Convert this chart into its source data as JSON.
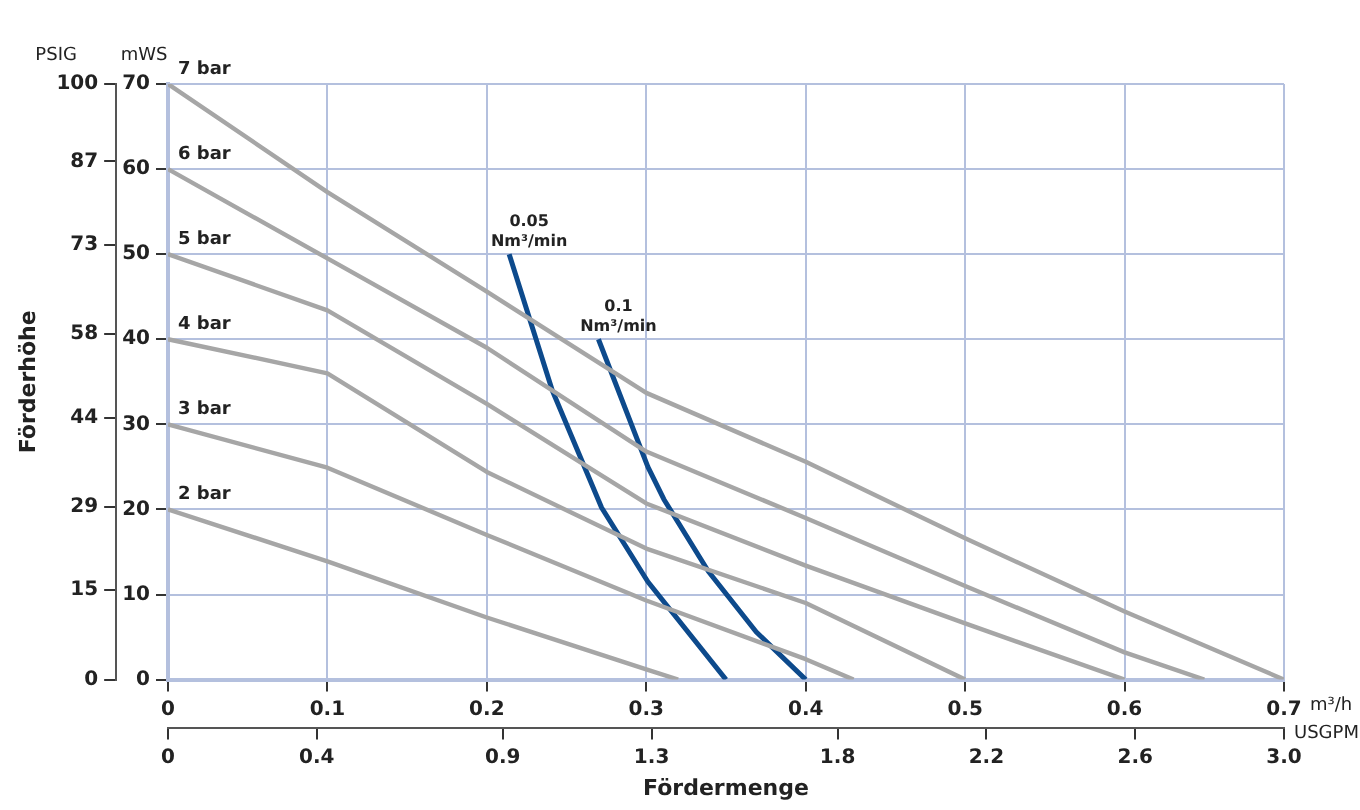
{
  "chart_data": {
    "type": "line",
    "xlabel": "Fördermenge",
    "y2label": "Förderhöhe",
    "x2label": "USGPM",
    "annotations": [
      "PSIG",
      "mWS",
      "m³/h"
    ],
    "xlim": [
      0,
      0.7
    ],
    "xticks": [
      0,
      0.1,
      0.2,
      0.3,
      0.4,
      0.5,
      0.6,
      0.7
    ],
    "ylim": [
      0,
      70
    ],
    "yticks": [
      0,
      10,
      20,
      30,
      40,
      50,
      60,
      70
    ],
    "x2lim": [
      0,
      3.0
    ],
    "x2ticks": [
      0,
      0.4,
      0.9,
      1.3,
      1.8,
      2.2,
      2.6,
      {
        "value": 3.0,
        "label": "3.0"
      }
    ],
    "y2lim": [
      0,
      100
    ],
    "y2ticks": [
      0,
      15,
      29,
      44,
      58,
      73,
      87,
      100
    ],
    "grid": true,
    "legend": false,
    "marker": "none",
    "line_style": "solid",
    "series": [
      {
        "name": "7 bar",
        "color": "#a6a6a6",
        "x": [
          0,
          0.1,
          0.2,
          0.3,
          0.4,
          0.5,
          0.6,
          0.7
        ],
        "values": [
          70,
          57.3,
          45.6,
          33.7,
          25.6,
          16.6,
          8,
          0
        ]
      },
      {
        "name": "6 bar",
        "color": "#a6a6a6",
        "x": [
          0,
          0.1,
          0.2,
          0.3,
          0.4,
          0.5,
          0.6,
          0.65
        ],
        "values": [
          60,
          49.5,
          39,
          26.8,
          19,
          11,
          3.2,
          0
        ]
      },
      {
        "name": "5 bar",
        "color": "#a6a6a6",
        "x": [
          0,
          0.1,
          0.2,
          0.3,
          0.4,
          0.5,
          0.6
        ],
        "values": [
          50,
          43.4,
          32.4,
          20.7,
          13.4,
          6.6,
          0
        ]
      },
      {
        "name": "4 bar",
        "color": "#a6a6a6",
        "x": [
          0,
          0.1,
          0.2,
          0.3,
          0.4,
          0.5
        ],
        "values": [
          40,
          36,
          24.4,
          15.4,
          9,
          0
        ]
      },
      {
        "name": "3 bar",
        "color": "#a6a6a6",
        "x": [
          0,
          0.1,
          0.2,
          0.3,
          0.4,
          0.43
        ],
        "values": [
          30,
          24.9,
          17,
          9.3,
          2.4,
          0
        ]
      },
      {
        "name": "2 bar",
        "color": "#a6a6a6",
        "x": [
          0,
          0.1,
          0.2,
          0.3,
          0.32
        ],
        "values": [
          20,
          13.9,
          7.3,
          1.2,
          0
        ]
      },
      {
        "name": "0.05 Nm³/min",
        "color": "#0d4a8c",
        "x": [
          0.214,
          0.241,
          0.272,
          0.301,
          0.35
        ],
        "values": [
          50,
          34,
          20.2,
          11.5,
          0
        ]
      },
      {
        "name": "0.1 Nm³/min",
        "color": "#0d4a8c",
        "x": [
          0.27,
          0.301,
          0.311,
          0.339,
          0.369,
          0.4
        ],
        "values": [
          40,
          25,
          21.2,
          12.7,
          5.6,
          0
        ]
      }
    ]
  }
}
